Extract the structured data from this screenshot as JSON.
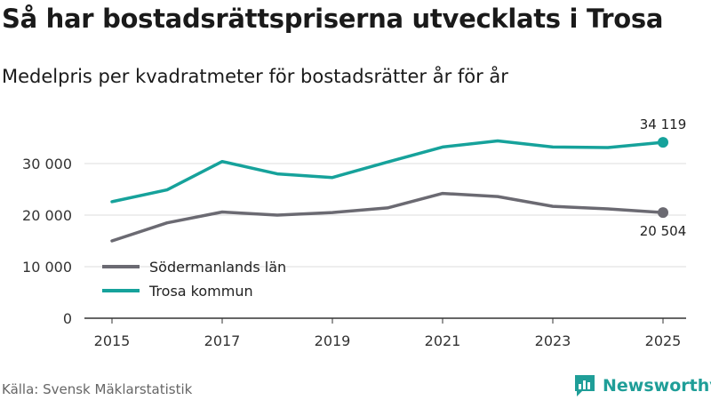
{
  "title": "Så har bostadsrättspriserna utvecklats i Trosa",
  "subtitle": "Medelpris per kvadratmeter för bostadsrätter år för år",
  "source": "Källa: Svensk Mäklarstatistik",
  "brand": "Newsworthy",
  "colors": {
    "sodermanland": "#6b6a72",
    "trosa": "#16a29b",
    "grid": "#dcdcdc",
    "axis": "#333333"
  },
  "chart_data": {
    "type": "line",
    "title": "Så har bostadsrättspriserna utvecklats i Trosa",
    "subtitle": "Medelpris per kvadratmeter för bostadsrätter år för år",
    "xlabel": "",
    "ylabel": "",
    "x": [
      2015,
      2016,
      2017,
      2018,
      2019,
      2020,
      2021,
      2022,
      2023,
      2024,
      2025
    ],
    "ylim": [
      0,
      36000
    ],
    "yticks": [
      0,
      10000,
      20000,
      30000
    ],
    "ytick_labels": [
      "0",
      "10 000",
      "20 000",
      "30 000"
    ],
    "xticks": [
      2015,
      2017,
      2019,
      2021,
      2023,
      2025
    ],
    "xtick_labels": [
      "2015",
      "2017",
      "2019",
      "2021",
      "2023",
      "2025"
    ],
    "grid": true,
    "legend_position": "bottom-left",
    "series": [
      {
        "name": "Södermanlands län",
        "key": "sodermanland",
        "values": [
          15000,
          18500,
          20600,
          20000,
          20500,
          21400,
          24200,
          23600,
          21700,
          21200,
          20504
        ],
        "end_label": "20 504",
        "end_label_position": "below"
      },
      {
        "name": "Trosa kommun",
        "key": "trosa",
        "values": [
          22600,
          24900,
          30400,
          28000,
          27300,
          30300,
          33200,
          34400,
          33200,
          33100,
          34119
        ],
        "end_label": "34 119",
        "end_label_position": "above"
      }
    ]
  }
}
